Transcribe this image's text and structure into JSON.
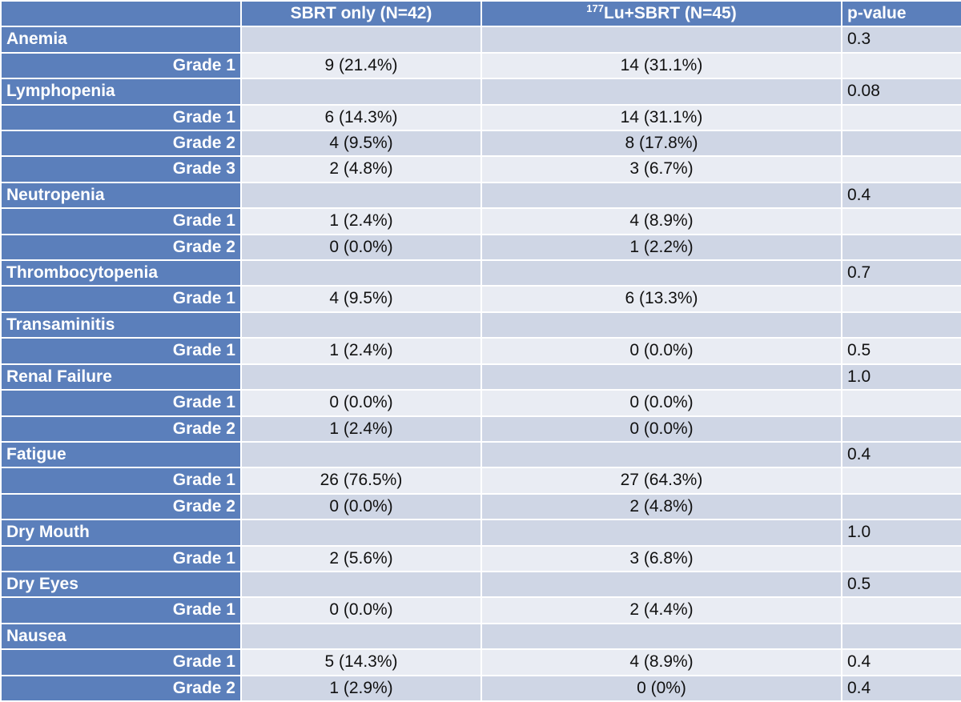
{
  "header": {
    "col1": "",
    "col2": "SBRT only (N=42)",
    "col3_sup": "177",
    "col3_main": "Lu+SBRT (N=45)",
    "col4": "p-value"
  },
  "rows": [
    {
      "type": "cat",
      "label": "Anemia",
      "a": "",
      "b": "",
      "p": "0.3"
    },
    {
      "type": "grade",
      "label": "Grade 1",
      "a": "9 (21.4%)",
      "b": "14 (31.1%)",
      "p": ""
    },
    {
      "type": "cat",
      "label": "Lymphopenia",
      "a": "",
      "b": "",
      "p": "0.08"
    },
    {
      "type": "grade",
      "label": "Grade 1",
      "a": "6 (14.3%)",
      "b": "14 (31.1%)",
      "p": ""
    },
    {
      "type": "grade",
      "label": "Grade 2",
      "a": "4 (9.5%)",
      "b": "8 (17.8%)",
      "p": ""
    },
    {
      "type": "grade",
      "label": "Grade 3",
      "a": "2 (4.8%)",
      "b": "3 (6.7%)",
      "p": ""
    },
    {
      "type": "cat",
      "label": "Neutropenia",
      "a": "",
      "b": "",
      "p": "0.4"
    },
    {
      "type": "grade",
      "label": "Grade 1",
      "a": "1 (2.4%)",
      "b": "4 (8.9%)",
      "p": ""
    },
    {
      "type": "grade",
      "label": "Grade 2",
      "a": "0 (0.0%)",
      "b": "1 (2.2%)",
      "p": ""
    },
    {
      "type": "cat",
      "label": "Thrombocytopenia",
      "a": "",
      "b": "",
      "p": "0.7"
    },
    {
      "type": "grade",
      "label": "Grade 1",
      "a": "4 (9.5%)",
      "b": "6 (13.3%)",
      "p": ""
    },
    {
      "type": "cat",
      "label": "Transaminitis",
      "a": "",
      "b": "",
      "p": ""
    },
    {
      "type": "grade",
      "label": "Grade 1",
      "a": "1 (2.4%)",
      "b": "0 (0.0%)",
      "p": "0.5"
    },
    {
      "type": "cat",
      "label": "Renal Failure",
      "a": "",
      "b": "",
      "p": "1.0"
    },
    {
      "type": "grade",
      "label": "Grade 1",
      "a": "0 (0.0%)",
      "b": "0 (0.0%)",
      "p": ""
    },
    {
      "type": "grade",
      "label": "Grade 2",
      "a": "1 (2.4%)",
      "b": "0 (0.0%)",
      "p": ""
    },
    {
      "type": "cat",
      "label": "Fatigue",
      "a": "",
      "b": "",
      "p": "0.4"
    },
    {
      "type": "grade",
      "label": "Grade 1",
      "a": "26 (76.5%)",
      "b": "27 (64.3%)",
      "p": ""
    },
    {
      "type": "grade",
      "label": "Grade 2",
      "a": "0 (0.0%)",
      "b": "2 (4.8%)",
      "p": ""
    },
    {
      "type": "cat",
      "label": "Dry Mouth",
      "a": "",
      "b": "",
      "p": "1.0"
    },
    {
      "type": "grade",
      "label": "Grade 1",
      "a": "2 (5.6%)",
      "b": "3 (6.8%)",
      "p": ""
    },
    {
      "type": "cat",
      "label": "Dry Eyes",
      "a": "",
      "b": "",
      "p": "0.5"
    },
    {
      "type": "grade",
      "label": "Grade 1",
      "a": "0 (0.0%)",
      "b": "2 (4.4%)",
      "p": ""
    },
    {
      "type": "cat",
      "label": "Nausea",
      "a": "",
      "b": "",
      "p": ""
    },
    {
      "type": "grade",
      "label": "Grade 1",
      "a": "5 (14.3%)",
      "b": "4 (8.9%)",
      "p": "0.4"
    },
    {
      "type": "grade",
      "label": "Grade 2",
      "a": "1 (2.9%)",
      "b": "0 (0%)",
      "p": "0.4"
    }
  ]
}
